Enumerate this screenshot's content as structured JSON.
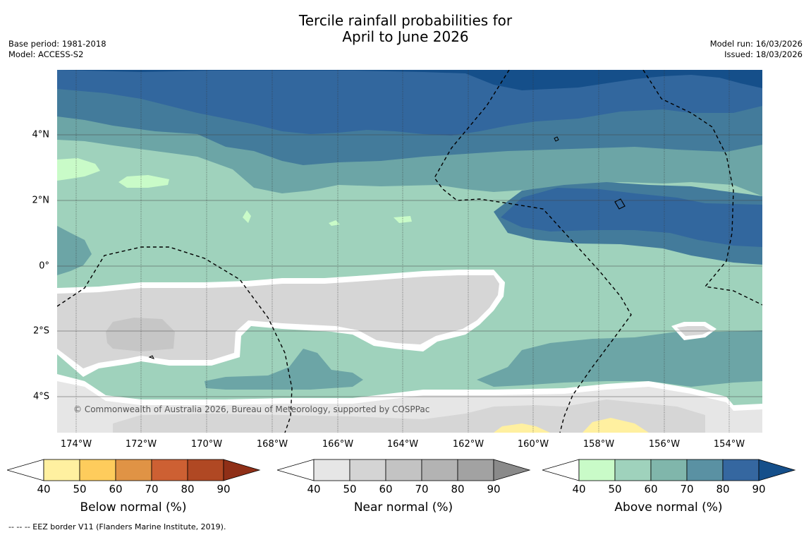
{
  "title": {
    "line1": "Tercile rainfall probabilities for",
    "line2": "April to June 2026"
  },
  "meta_left": {
    "base_period": "Base period: 1981-2018",
    "model": "Model: ACCESS-S2"
  },
  "meta_right": {
    "model_run": "Model run: 16/03/2026",
    "issued": "Issued: 18/03/2026"
  },
  "copyright": "© Commonwealth of Australia 2026, Bureau of Meteorology, supported by COSPPac",
  "x_ticks": [
    "174°W",
    "172°W",
    "170°W",
    "168°W",
    "166°W",
    "164°W",
    "162°W",
    "160°W",
    "158°W",
    "156°W",
    "154°W"
  ],
  "y_ticks": [
    "4°N",
    "2°N",
    "0°",
    "2°S",
    "4°S"
  ],
  "colorbars": [
    {
      "label": "Below normal (%)",
      "ticks": [
        "40",
        "50",
        "60",
        "70",
        "80",
        "90"
      ],
      "colors": [
        "#fff0a0",
        "#fecc5c",
        "#e09345",
        "#cd6033",
        "#b04823",
        "#8f2f17"
      ]
    },
    {
      "label": "Near normal (%)",
      "ticks": [
        "40",
        "50",
        "60",
        "70",
        "80",
        "90"
      ],
      "colors": [
        "#e6e6e6",
        "#d4d4d4",
        "#c3c3c3",
        "#b3b3b3",
        "#a2a2a2",
        "#8a8a8a"
      ]
    },
    {
      "label": "Above normal (%)",
      "ticks": [
        "40",
        "50",
        "60",
        "70",
        "80",
        "90"
      ],
      "colors": [
        "#c9fbc8",
        "#9fd2bc",
        "#80b6ab",
        "#5a91a3",
        "#3567a0",
        "#154f8a"
      ]
    }
  ],
  "footer": "--  --  -- EEZ border V11 (Flanders Marine Institute, 2019).",
  "colors": {
    "above_40": "#c9fbc8",
    "above_50": "#9fd2bc",
    "above_60": "#6ca5a6",
    "above_70": "#437b9b",
    "above_80": "#32679e",
    "above_90": "#154f8a",
    "near_40": "#e6e6e6",
    "near_50": "#d6d6d6",
    "near_60": "#c6c6c6",
    "below_40": "#fff0a0"
  }
}
